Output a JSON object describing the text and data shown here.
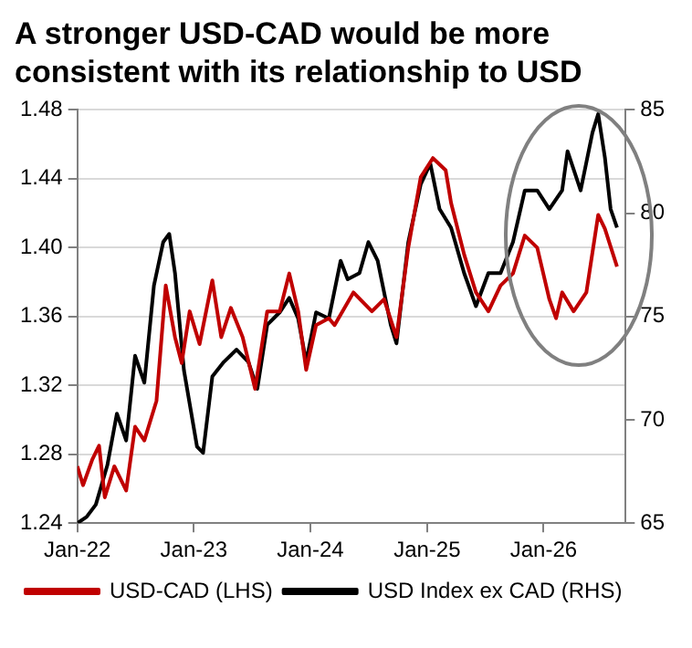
{
  "chart_data": {
    "type": "line",
    "title": "A stronger USD-CAD would be more consistent with its relationship to USD",
    "xlim": [
      "2022-01-01",
      "2026-09-15"
    ],
    "xticks": [
      {
        "value": "2022-01-01",
        "label": "Jan-22"
      },
      {
        "value": "2023-01-01",
        "label": "Jan-23"
      },
      {
        "value": "2024-01-01",
        "label": "Jan-24"
      },
      {
        "value": "2025-01-01",
        "label": "Jan-25"
      },
      {
        "value": "2026-01-01",
        "label": "Jan-26"
      }
    ],
    "ylim": [
      1.24,
      1.48
    ],
    "yticks": [
      1.24,
      1.28,
      1.32,
      1.36,
      {
        "value": 1.4,
        "label": "1.40"
      },
      1.44,
      1.48
    ],
    "y2lim": [
      65,
      85
    ],
    "y2ticks": [
      65,
      70,
      75,
      80,
      85
    ],
    "grid": "y",
    "legend": "bottom",
    "line_style": "solid",
    "marker": "none",
    "series": [
      {
        "name": "USD-CAD (LHS)",
        "color": "#c00000",
        "x": [
          "2022-01-01",
          "2022-01-19",
          "2022-02-17",
          "2022-03-10",
          "2022-03-28",
          "2022-04-27",
          "2022-06-03",
          "2022-07-01",
          "2022-07-30",
          "2022-09-06",
          "2022-10-05",
          "2022-11-03",
          "2022-11-24",
          "2022-12-19",
          "2023-01-19",
          "2023-02-28",
          "2023-03-28",
          "2023-04-27",
          "2023-06-03",
          "2023-07-12",
          "2023-08-19",
          "2023-09-27",
          "2023-10-27",
          "2023-11-24",
          "2023-12-19",
          "2024-01-19",
          "2024-02-28",
          "2024-03-17",
          "2024-05-15",
          "2024-07-12",
          "2024-08-19",
          "2024-09-27",
          "2024-11-03",
          "2024-12-12",
          "2025-01-19",
          "2025-02-28",
          "2025-03-17",
          "2025-04-27",
          "2025-06-03",
          "2025-07-12",
          "2025-08-19",
          "2025-09-27",
          "2025-11-03",
          "2025-12-12",
          "2026-01-19",
          "2026-02-09",
          "2026-02-28",
          "2026-04-05",
          "2026-05-15",
          "2026-06-21",
          "2026-07-12",
          "2026-08-19"
        ],
        "values": [
          1.273,
          1.262,
          1.277,
          1.285,
          1.255,
          1.273,
          1.259,
          1.296,
          1.288,
          1.311,
          1.378,
          1.348,
          1.333,
          1.363,
          1.344,
          1.381,
          1.348,
          1.365,
          1.348,
          1.318,
          1.363,
          1.363,
          1.385,
          1.363,
          1.329,
          1.355,
          1.359,
          1.355,
          1.374,
          1.363,
          1.37,
          1.348,
          1.4,
          1.441,
          1.452,
          1.445,
          1.426,
          1.396,
          1.374,
          1.363,
          1.378,
          1.385,
          1.407,
          1.4,
          1.37,
          1.359,
          1.374,
          1.363,
          1.374,
          1.419,
          1.411,
          1.389
        ]
      },
      {
        "name": "USD Index ex CAD (RHS)",
        "color": "#000000",
        "axis": "y2",
        "x": [
          "2022-01-01",
          "2022-01-30",
          "2022-02-28",
          "2022-04-05",
          "2022-05-05",
          "2022-06-03",
          "2022-07-01",
          "2022-07-30",
          "2022-08-29",
          "2022-09-27",
          "2022-10-16",
          "2022-11-03",
          "2022-12-01",
          "2023-01-11",
          "2023-01-30",
          "2023-02-28",
          "2023-04-05",
          "2023-05-15",
          "2023-06-21",
          "2023-07-19",
          "2023-08-19",
          "2023-09-27",
          "2023-10-27",
          "2023-11-24",
          "2023-12-19",
          "2024-01-19",
          "2024-02-28",
          "2024-04-05",
          "2024-04-27",
          "2024-06-03",
          "2024-07-01",
          "2024-07-30",
          "2024-09-09",
          "2024-09-27",
          "2024-11-03",
          "2024-12-12",
          "2025-01-11",
          "2025-02-09",
          "2025-03-17",
          "2025-04-27",
          "2025-06-03",
          "2025-07-12",
          "2025-08-19",
          "2025-09-27",
          "2025-11-03",
          "2025-12-12",
          "2026-01-19",
          "2026-02-28",
          "2026-03-17",
          "2026-04-27",
          "2026-06-03",
          "2026-06-21",
          "2026-07-12",
          "2026-07-30",
          "2026-08-19"
        ],
        "values": [
          65.0,
          65.3,
          65.9,
          67.8,
          70.3,
          69.0,
          73.1,
          71.8,
          76.5,
          78.6,
          79.0,
          77.1,
          72.4,
          68.7,
          68.4,
          72.1,
          72.8,
          73.4,
          72.8,
          71.5,
          74.6,
          75.2,
          75.9,
          74.9,
          72.8,
          75.2,
          74.9,
          77.7,
          76.8,
          77.1,
          78.6,
          77.7,
          74.6,
          73.7,
          78.6,
          81.4,
          82.4,
          80.2,
          79.3,
          77.1,
          75.5,
          77.1,
          77.1,
          78.6,
          81.1,
          81.1,
          80.2,
          81.1,
          83.0,
          81.1,
          83.9,
          84.8,
          82.7,
          80.2,
          79.3
        ]
      }
    ]
  }
}
